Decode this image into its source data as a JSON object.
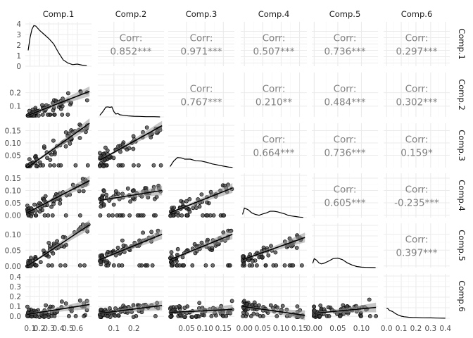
{
  "chart_data": {
    "type": "scatter",
    "variables": [
      "Comp.1",
      "Comp.2",
      "Comp.3",
      "Comp.4",
      "Comp.5",
      "Comp.6"
    ],
    "ranges": [
      [
        0.05,
        0.75
      ],
      [
        0.02,
        0.35
      ],
      [
        0.0,
        0.18
      ],
      [
        -0.01,
        0.17
      ],
      [
        -0.005,
        0.135
      ],
      [
        -0.02,
        0.43
      ]
    ],
    "axis_ticks": [
      {
        "values": [
          0.1,
          0.2,
          0.3,
          0.4,
          0.5,
          0.6
        ],
        "labels": [
          "0.1",
          "0.2",
          "0.3",
          "0.4",
          "0.5",
          "0.6"
        ]
      },
      {
        "values": [
          0.1,
          0.2
        ],
        "labels": [
          "0.1",
          "0.2"
        ]
      },
      {
        "values": [
          0.05,
          0.1,
          0.15
        ],
        "labels": [
          "0.05",
          "0.10",
          "0.15"
        ]
      },
      {
        "values": [
          0.0,
          0.05,
          0.1,
          0.15
        ],
        "labels": [
          "0.00",
          "0.05",
          "0.10",
          "0.15"
        ]
      },
      {
        "values": [
          0.0,
          0.05,
          0.1
        ],
        "labels": [
          "0.00",
          "0.05",
          "0.10"
        ]
      },
      {
        "values": [
          0.0,
          0.1,
          0.2,
          0.3,
          0.4
        ],
        "labels": [
          "0.0",
          "0.1",
          "0.2",
          "0.3",
          "0.4"
        ]
      }
    ],
    "density_y_ticks": {
      "values": [
        0,
        1,
        2,
        3,
        4
      ],
      "labels": [
        "0",
        "1",
        "2",
        "3",
        "4"
      ],
      "range": [
        0,
        4.2
      ]
    },
    "correlations": [
      {
        "row": "Comp.1",
        "col": "Comp.2",
        "label": "Corr:",
        "value": "0.852***"
      },
      {
        "row": "Comp.1",
        "col": "Comp.3",
        "label": "Corr:",
        "value": "0.971***"
      },
      {
        "row": "Comp.1",
        "col": "Comp.4",
        "label": "Corr:",
        "value": "0.507***"
      },
      {
        "row": "Comp.1",
        "col": "Comp.5",
        "label": "Corr:",
        "value": "0.736***"
      },
      {
        "row": "Comp.1",
        "col": "Comp.6",
        "label": "Corr:",
        "value": "0.297***"
      },
      {
        "row": "Comp.2",
        "col": "Comp.3",
        "label": "Corr:",
        "value": "0.767***"
      },
      {
        "row": "Comp.2",
        "col": "Comp.4",
        "label": "Corr:",
        "value": "0.210**"
      },
      {
        "row": "Comp.2",
        "col": "Comp.5",
        "label": "Corr:",
        "value": "0.484***"
      },
      {
        "row": "Comp.2",
        "col": "Comp.6",
        "label": "Corr:",
        "value": "0.302***"
      },
      {
        "row": "Comp.3",
        "col": "Comp.4",
        "label": "Corr:",
        "value": "0.664***"
      },
      {
        "row": "Comp.3",
        "col": "Comp.5",
        "label": "Corr:",
        "value": "0.736***"
      },
      {
        "row": "Comp.3",
        "col": "Comp.6",
        "label": "Corr:",
        "value": "0.159*"
      },
      {
        "row": "Comp.4",
        "col": "Comp.5",
        "label": "Corr:",
        "value": "0.605***"
      },
      {
        "row": "Comp.4",
        "col": "Comp.6",
        "label": "Corr:",
        "value": "-0.235***"
      },
      {
        "row": "Comp.5",
        "col": "Comp.6",
        "label": "Corr:",
        "value": "0.397***"
      }
    ],
    "densities": [
      {
        "variable": "Comp.1",
        "x": [
          0.08,
          0.1,
          0.12,
          0.14,
          0.16,
          0.18,
          0.2,
          0.25,
          0.3,
          0.35,
          0.4,
          0.45,
          0.5,
          0.55,
          0.6,
          0.65,
          0.7
        ],
        "y": [
          1.5,
          2.7,
          3.5,
          3.85,
          3.8,
          3.6,
          3.4,
          3.0,
          2.6,
          2.1,
          1.3,
          0.6,
          0.3,
          0.15,
          0.2,
          0.1,
          0.05
        ]
      },
      {
        "variable": "Comp.2",
        "x": [
          0.03,
          0.045,
          0.06,
          0.07,
          0.08,
          0.09,
          0.1,
          0.11,
          0.12,
          0.13,
          0.15,
          0.17,
          0.2,
          0.23,
          0.26,
          0.3,
          0.33
        ],
        "y": [
          0.15,
          0.5,
          0.92,
          0.95,
          0.9,
          0.95,
          0.5,
          0.27,
          0.32,
          0.2,
          0.15,
          0.1,
          0.06,
          0.05,
          0.02,
          0.02,
          0.0
        ]
      },
      {
        "variable": "Comp.3",
        "x": [
          0.005,
          0.015,
          0.025,
          0.035,
          0.045,
          0.06,
          0.075,
          0.09,
          0.105,
          0.12,
          0.135,
          0.15,
          0.165,
          0.175
        ],
        "y": [
          0.1,
          0.62,
          0.95,
          0.92,
          0.8,
          0.8,
          0.65,
          0.62,
          0.5,
          0.35,
          0.25,
          0.14,
          0.05,
          0.02
        ]
      },
      {
        "variable": "Comp.4",
        "x": [
          -0.005,
          0.0,
          0.01,
          0.02,
          0.03,
          0.04,
          0.05,
          0.06,
          0.07,
          0.08,
          0.09,
          0.1,
          0.11,
          0.12,
          0.13,
          0.14,
          0.15,
          0.16
        ],
        "y": [
          0.3,
          0.9,
          0.75,
          0.45,
          0.3,
          0.22,
          0.35,
          0.45,
          0.6,
          0.6,
          0.55,
          0.45,
          0.35,
          0.2,
          0.15,
          0.1,
          0.05,
          0.02
        ]
      },
      {
        "variable": "Comp.5",
        "x": [
          -0.003,
          0.0,
          0.005,
          0.01,
          0.015,
          0.02,
          0.03,
          0.04,
          0.05,
          0.06,
          0.07,
          0.08,
          0.09,
          0.1,
          0.11,
          0.12,
          0.13
        ],
        "y": [
          0.4,
          0.85,
          0.7,
          0.45,
          0.35,
          0.4,
          0.6,
          0.85,
          0.9,
          0.75,
          0.45,
          0.25,
          0.1,
          0.04,
          0.02,
          0.01,
          0.0
        ]
      },
      {
        "variable": "Comp.6",
        "x": [
          0.0,
          0.01,
          0.02,
          0.04,
          0.06,
          0.08,
          0.1,
          0.12,
          0.15,
          0.18,
          0.2,
          0.25,
          0.3,
          0.35,
          0.4
        ],
        "y": [
          0.95,
          0.9,
          0.75,
          0.65,
          0.45,
          0.3,
          0.2,
          0.15,
          0.1,
          0.08,
          0.08,
          0.05,
          0.04,
          0.02,
          0.01
        ]
      }
    ],
    "regressions": [
      {
        "row": "Comp.2",
        "col": "Comp.1",
        "y_start": 0.03,
        "y_end": 0.21
      },
      {
        "row": "Comp.3",
        "col": "Comp.1",
        "y_start": 0.0,
        "y_end": 0.18
      },
      {
        "row": "Comp.3",
        "col": "Comp.2",
        "y_start": 0.03,
        "y_end": 0.17
      },
      {
        "row": "Comp.4",
        "col": "Comp.1",
        "y_start": 0.01,
        "y_end": 0.14
      },
      {
        "row": "Comp.4",
        "col": "Comp.2",
        "y_start": 0.06,
        "y_end": 0.1
      },
      {
        "row": "Comp.4",
        "col": "Comp.3",
        "y_start": 0.01,
        "y_end": 0.11
      },
      {
        "row": "Comp.5",
        "col": "Comp.1",
        "y_start": 0.0,
        "y_end": 0.13
      },
      {
        "row": "Comp.5",
        "col": "Comp.2",
        "y_start": 0.02,
        "y_end": 0.1
      },
      {
        "row": "Comp.5",
        "col": "Comp.3",
        "y_start": 0.02,
        "y_end": 0.1
      },
      {
        "row": "Comp.5",
        "col": "Comp.4",
        "y_start": 0.02,
        "y_end": 0.09
      },
      {
        "row": "Comp.6",
        "col": "Comp.1",
        "y_start": 0.02,
        "y_end": 0.12
      },
      {
        "row": "Comp.6",
        "col": "Comp.2",
        "y_start": 0.03,
        "y_end": 0.11
      },
      {
        "row": "Comp.6",
        "col": "Comp.3",
        "y_start": 0.04,
        "y_end": 0.07
      },
      {
        "row": "Comp.6",
        "col": "Comp.4",
        "y_start": 0.1,
        "y_end": 0.01
      },
      {
        "row": "Comp.6",
        "col": "Comp.5",
        "y_start": 0.03,
        "y_end": 0.09
      }
    ],
    "grid": true,
    "point_color": "#404040",
    "band_color": "#999999",
    "line_color": "#000000",
    "text_color": "#808080"
  }
}
